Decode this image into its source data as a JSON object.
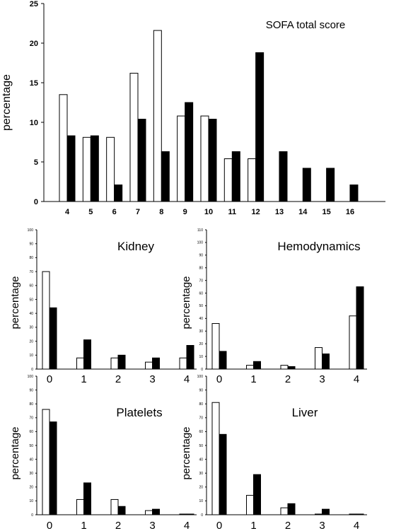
{
  "chart_data": [
    {
      "type": "bar",
      "title": "SOFA total score",
      "ylabel": "percentage",
      "xlabel": "",
      "ylim": [
        0,
        25
      ],
      "yticks": [
        0,
        5,
        10,
        15,
        20,
        25
      ],
      "categories": [
        "4",
        "5",
        "6",
        "7",
        "8",
        "9",
        "10",
        "11",
        "12",
        "13",
        "14",
        "15",
        "16"
      ],
      "series": [
        {
          "color": "#ffffff",
          "values": [
            13.5,
            8.1,
            8.1,
            16.2,
            21.6,
            10.8,
            10.8,
            5.4,
            5.4,
            0,
            0,
            0,
            0
          ]
        },
        {
          "color": "#000000",
          "values": [
            8.3,
            8.3,
            2.1,
            10.4,
            6.3,
            12.5,
            10.4,
            6.3,
            18.8,
            6.3,
            4.2,
            4.2,
            2.1
          ]
        }
      ]
    },
    {
      "type": "bar",
      "title": "Kidney",
      "ylabel": "percentage",
      "xlabel": "",
      "ylim": [
        0,
        100
      ],
      "yticks": [
        "0",
        "10",
        "20",
        "30",
        "40",
        "50",
        "60",
        "70",
        "80",
        "90",
        "100"
      ],
      "categories": [
        "0",
        "1",
        "2",
        "3",
        "4"
      ],
      "series": [
        {
          "color": "#ffffff",
          "values": [
            70,
            8,
            8,
            5,
            8
          ]
        },
        {
          "color": "#000000",
          "values": [
            44,
            21,
            10,
            8,
            17
          ]
        }
      ]
    },
    {
      "type": "bar",
      "title": "Hemodynamics",
      "ylabel": "percentage",
      "xlabel": "",
      "ylim": [
        0,
        110
      ],
      "yticks": [
        "0",
        "10",
        "20",
        "30",
        "40",
        "50",
        "60",
        "70",
        "80",
        "90",
        "100",
        "110"
      ],
      "categories": [
        "0",
        "1",
        "2",
        "3",
        "4"
      ],
      "series": [
        {
          "color": "#ffffff",
          "values": [
            36,
            3,
            3,
            17,
            42
          ]
        },
        {
          "color": "#000000",
          "values": [
            14,
            6,
            2,
            12,
            65
          ]
        }
      ]
    },
    {
      "type": "bar",
      "title": "Platelets",
      "ylabel": "percentage",
      "xlabel": "",
      "ylim": [
        0,
        100
      ],
      "yticks": [
        "0",
        "10",
        "20",
        "30",
        "40",
        "50",
        "60",
        "70",
        "80",
        "90",
        "100"
      ],
      "categories": [
        "0",
        "1",
        "2",
        "3",
        "4"
      ],
      "series": [
        {
          "color": "#ffffff",
          "values": [
            76,
            11,
            11,
            3,
            0.5
          ]
        },
        {
          "color": "#000000",
          "values": [
            67,
            23,
            6,
            4,
            0.5
          ]
        }
      ]
    },
    {
      "type": "bar",
      "title": "Liver",
      "ylabel": "percentage",
      "xlabel": "",
      "ylim": [
        0,
        100
      ],
      "yticks": [
        "0",
        "10",
        "20",
        "30",
        "40",
        "50",
        "60",
        "70",
        "80",
        "90",
        "100"
      ],
      "categories": [
        "0",
        "1",
        "2",
        "3",
        "4"
      ],
      "series": [
        {
          "color": "#ffffff",
          "values": [
            81,
            14,
            5,
            0.5,
            0.5
          ]
        },
        {
          "color": "#000000",
          "values": [
            58,
            29,
            8,
            4,
            0.5
          ]
        }
      ]
    }
  ]
}
